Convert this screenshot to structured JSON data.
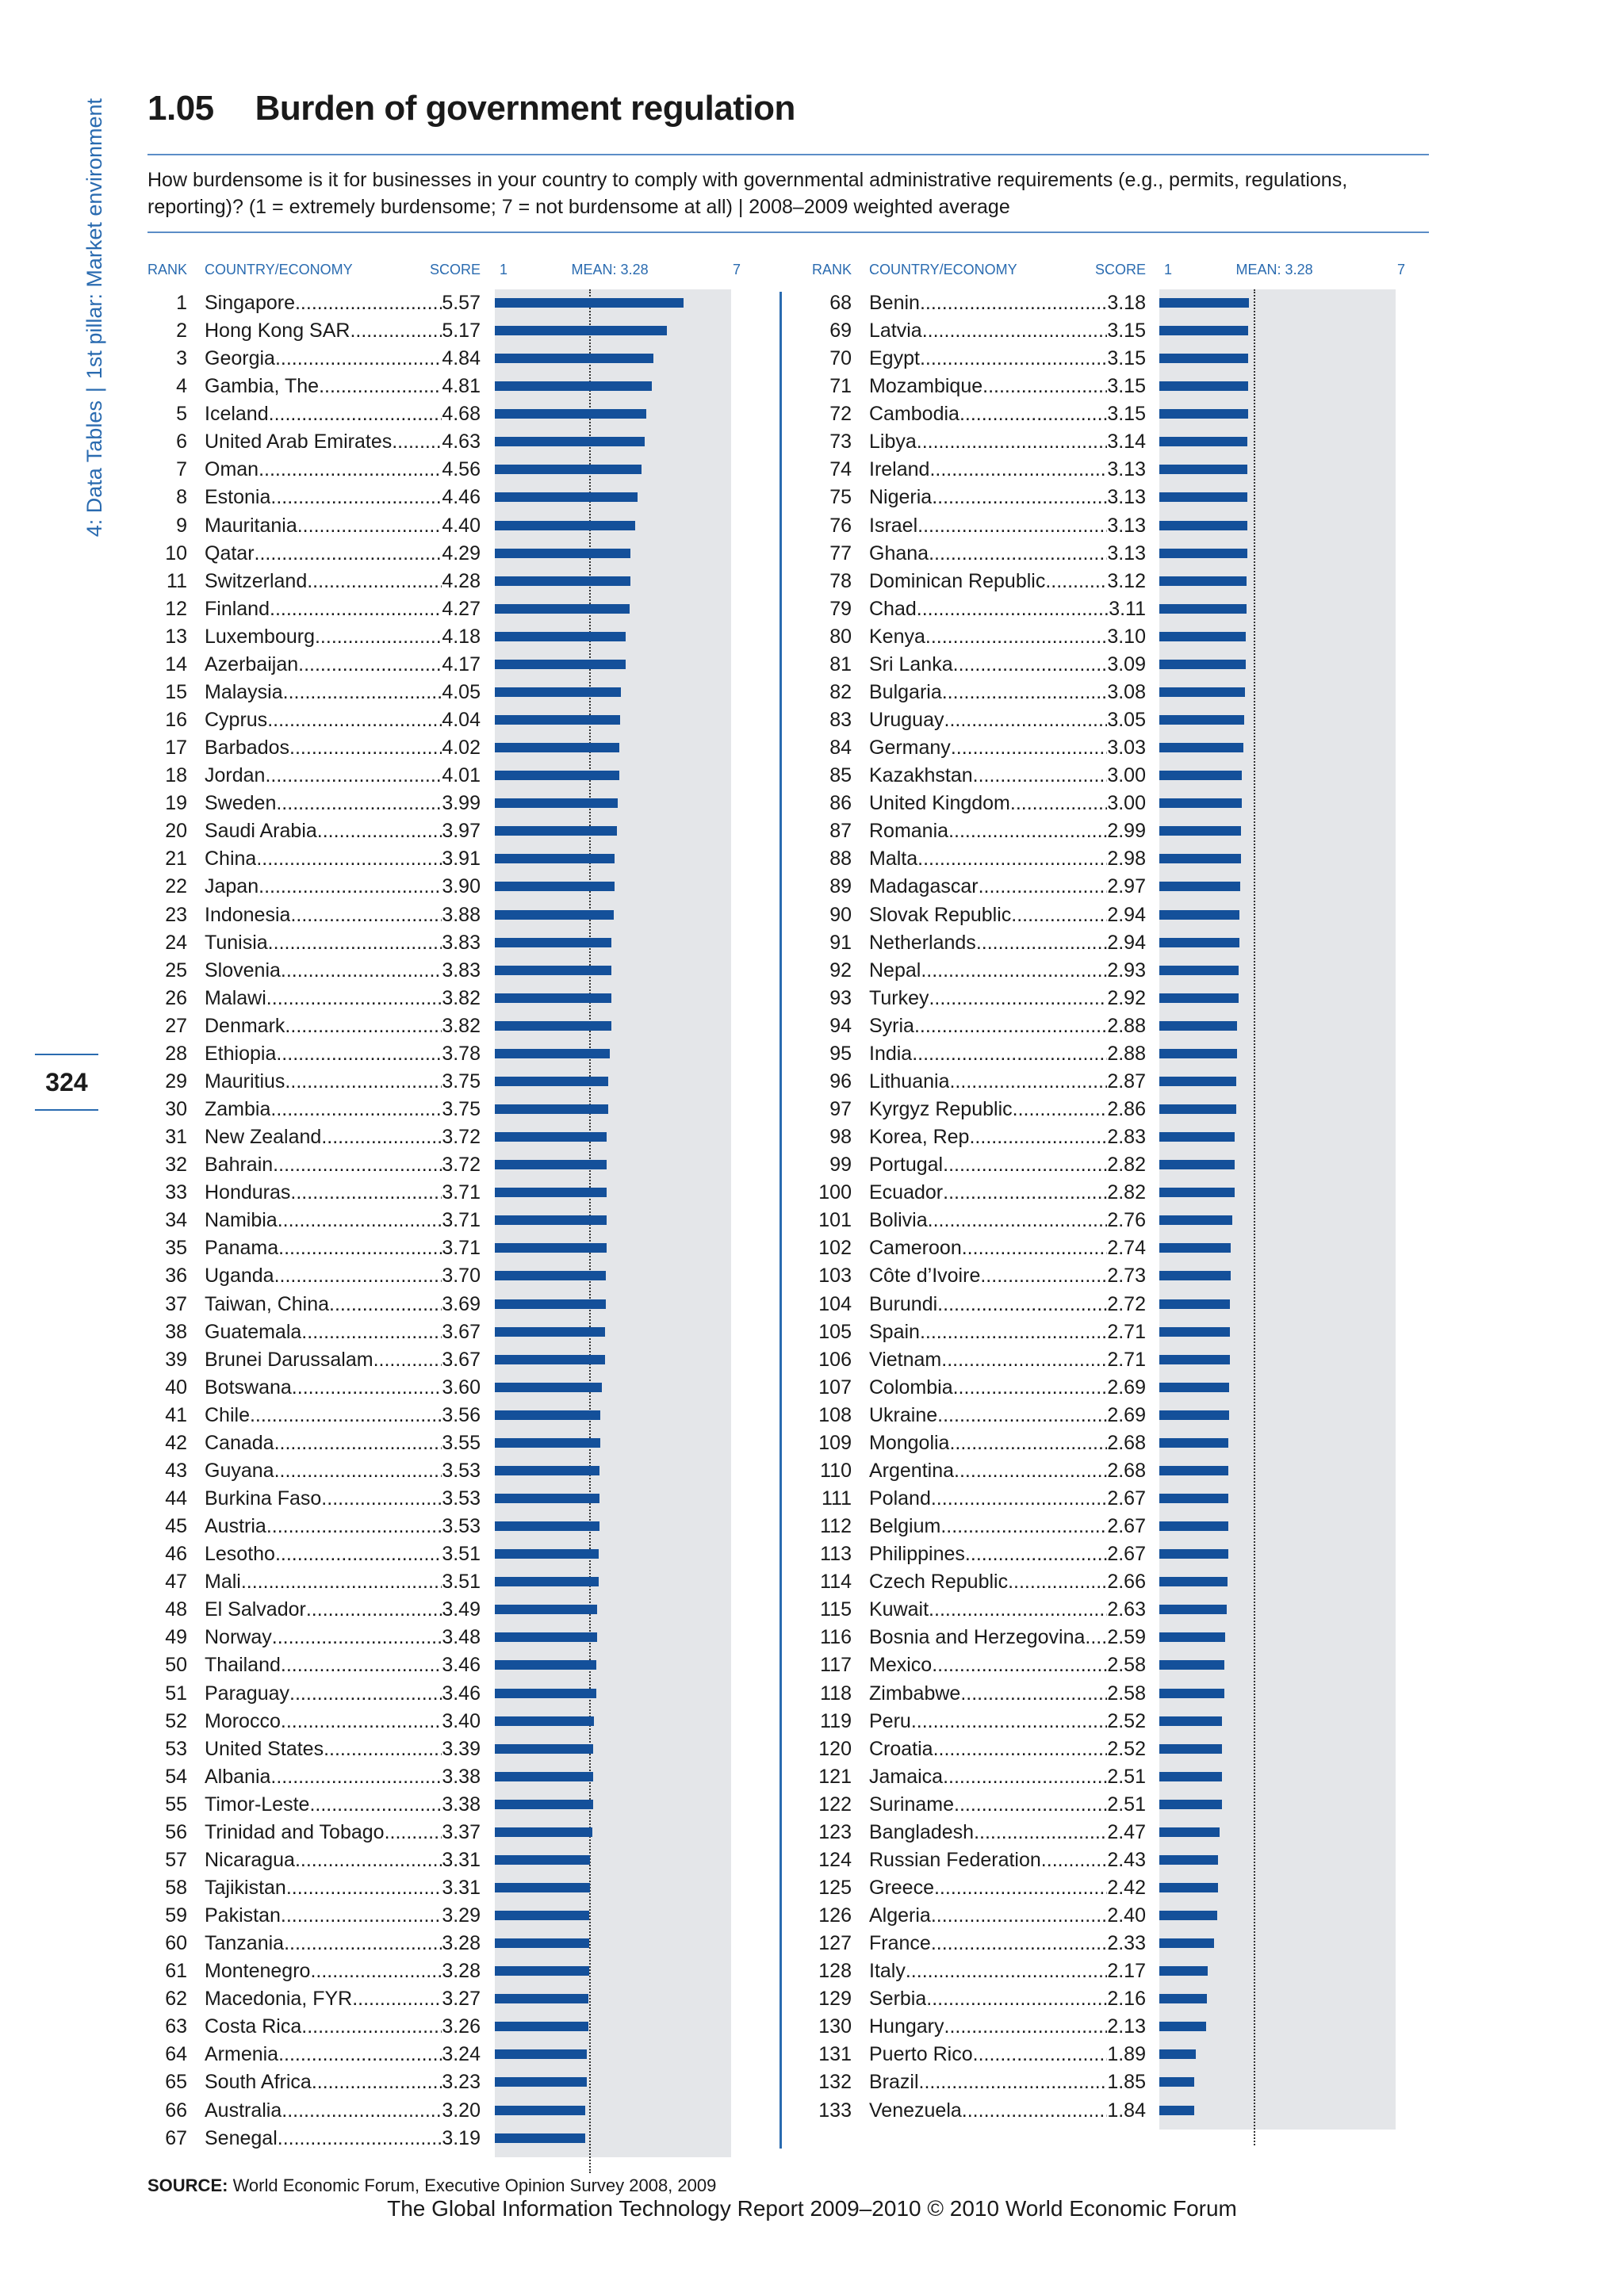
{
  "side_tab": {
    "part1": "4: Data Tables",
    "sep": "|",
    "part2": "1st pillar: Market environment"
  },
  "page_number": "324",
  "title": {
    "number": "1.05",
    "text": "Burden of government regulation"
  },
  "description": "How burdensome is it for businesses in your country to comply with governmental administrative requirements (e.g., permits, regulations, reporting)?  (1 = extremely burdensome; 7 = not burdensome at all)  |  2008–2009 weighted average",
  "headers": {
    "rank": "RANK",
    "country": "COUNTRY/ECONOMY",
    "score": "SCORE",
    "scale_min": "1",
    "mean": "MEAN: 3.28",
    "scale_max": "7"
  },
  "source": {
    "label": "SOURCE:",
    "text": " World Economic Forum, Executive Opinion Survey 2008, 2009"
  },
  "footer": "The Global Information Technology Report 2009–2010 © 2010 World Economic Forum",
  "chart_data": {
    "type": "bar",
    "orientation": "horizontal",
    "xlim": [
      1,
      7
    ],
    "mean": 3.28,
    "color": "#14509a",
    "rows": [
      {
        "rank": "1",
        "country": "Singapore",
        "score": "5.57"
      },
      {
        "rank": "2",
        "country": "Hong Kong SAR",
        "score": "5.17"
      },
      {
        "rank": "3",
        "country": "Georgia",
        "score": "4.84"
      },
      {
        "rank": "4",
        "country": "Gambia, The",
        "score": "4.81"
      },
      {
        "rank": "5",
        "country": "Iceland",
        "score": "4.68"
      },
      {
        "rank": "6",
        "country": "United Arab Emirates",
        "score": "4.63"
      },
      {
        "rank": "7",
        "country": "Oman",
        "score": "4.56"
      },
      {
        "rank": "8",
        "country": "Estonia",
        "score": "4.46"
      },
      {
        "rank": "9",
        "country": "Mauritania",
        "score": "4.40"
      },
      {
        "rank": "10",
        "country": "Qatar",
        "score": "4.29"
      },
      {
        "rank": "11",
        "country": "Switzerland",
        "score": "4.28"
      },
      {
        "rank": "12",
        "country": "Finland",
        "score": "4.27"
      },
      {
        "rank": "13",
        "country": "Luxembourg",
        "score": "4.18"
      },
      {
        "rank": "14",
        "country": "Azerbaijan",
        "score": "4.17"
      },
      {
        "rank": "15",
        "country": "Malaysia",
        "score": "4.05"
      },
      {
        "rank": "16",
        "country": "Cyprus",
        "score": "4.04"
      },
      {
        "rank": "17",
        "country": "Barbados",
        "score": "4.02"
      },
      {
        "rank": "18",
        "country": "Jordan",
        "score": "4.01"
      },
      {
        "rank": "19",
        "country": "Sweden",
        "score": "3.99"
      },
      {
        "rank": "20",
        "country": "Saudi Arabia",
        "score": "3.97"
      },
      {
        "rank": "21",
        "country": "China",
        "score": "3.91"
      },
      {
        "rank": "22",
        "country": "Japan",
        "score": "3.90"
      },
      {
        "rank": "23",
        "country": "Indonesia",
        "score": "3.88"
      },
      {
        "rank": "24",
        "country": "Tunisia",
        "score": "3.83"
      },
      {
        "rank": "25",
        "country": "Slovenia",
        "score": "3.83"
      },
      {
        "rank": "26",
        "country": "Malawi",
        "score": "3.82"
      },
      {
        "rank": "27",
        "country": "Denmark",
        "score": "3.82"
      },
      {
        "rank": "28",
        "country": "Ethiopia",
        "score": "3.78"
      },
      {
        "rank": "29",
        "country": "Mauritius",
        "score": "3.75"
      },
      {
        "rank": "30",
        "country": "Zambia",
        "score": "3.75"
      },
      {
        "rank": "31",
        "country": "New Zealand",
        "score": "3.72"
      },
      {
        "rank": "32",
        "country": "Bahrain",
        "score": "3.72"
      },
      {
        "rank": "33",
        "country": "Honduras",
        "score": "3.71"
      },
      {
        "rank": "34",
        "country": "Namibia",
        "score": "3.71"
      },
      {
        "rank": "35",
        "country": "Panama",
        "score": "3.71"
      },
      {
        "rank": "36",
        "country": "Uganda",
        "score": "3.70"
      },
      {
        "rank": "37",
        "country": "Taiwan, China",
        "score": "3.69"
      },
      {
        "rank": "38",
        "country": "Guatemala",
        "score": "3.67"
      },
      {
        "rank": "39",
        "country": "Brunei Darussalam",
        "score": "3.67"
      },
      {
        "rank": "40",
        "country": "Botswana",
        "score": "3.60"
      },
      {
        "rank": "41",
        "country": "Chile",
        "score": "3.56"
      },
      {
        "rank": "42",
        "country": "Canada",
        "score": "3.55"
      },
      {
        "rank": "43",
        "country": "Guyana",
        "score": "3.53"
      },
      {
        "rank": "44",
        "country": "Burkina Faso",
        "score": "3.53"
      },
      {
        "rank": "45",
        "country": "Austria",
        "score": "3.53"
      },
      {
        "rank": "46",
        "country": "Lesotho",
        "score": "3.51"
      },
      {
        "rank": "47",
        "country": "Mali",
        "score": "3.51"
      },
      {
        "rank": "48",
        "country": "El Salvador",
        "score": "3.49"
      },
      {
        "rank": "49",
        "country": "Norway",
        "score": "3.48"
      },
      {
        "rank": "50",
        "country": "Thailand",
        "score": "3.46"
      },
      {
        "rank": "51",
        "country": "Paraguay",
        "score": "3.46"
      },
      {
        "rank": "52",
        "country": "Morocco",
        "score": "3.40"
      },
      {
        "rank": "53",
        "country": "United States",
        "score": "3.39"
      },
      {
        "rank": "54",
        "country": "Albania",
        "score": "3.38"
      },
      {
        "rank": "55",
        "country": "Timor-Leste",
        "score": "3.38"
      },
      {
        "rank": "56",
        "country": "Trinidad and Tobago",
        "score": "3.37"
      },
      {
        "rank": "57",
        "country": "Nicaragua",
        "score": "3.31"
      },
      {
        "rank": "58",
        "country": "Tajikistan",
        "score": "3.31"
      },
      {
        "rank": "59",
        "country": "Pakistan",
        "score": "3.29"
      },
      {
        "rank": "60",
        "country": "Tanzania",
        "score": "3.28"
      },
      {
        "rank": "61",
        "country": "Montenegro",
        "score": "3.28"
      },
      {
        "rank": "62",
        "country": "Macedonia, FYR",
        "score": "3.27"
      },
      {
        "rank": "63",
        "country": "Costa Rica",
        "score": "3.26"
      },
      {
        "rank": "64",
        "country": "Armenia",
        "score": "3.24"
      },
      {
        "rank": "65",
        "country": "South Africa",
        "score": "3.23"
      },
      {
        "rank": "66",
        "country": "Australia",
        "score": "3.20"
      },
      {
        "rank": "67",
        "country": "Senegal",
        "score": "3.19"
      },
      {
        "rank": "68",
        "country": "Benin",
        "score": "3.18"
      },
      {
        "rank": "69",
        "country": "Latvia",
        "score": "3.15"
      },
      {
        "rank": "70",
        "country": "Egypt",
        "score": "3.15"
      },
      {
        "rank": "71",
        "country": "Mozambique",
        "score": "3.15"
      },
      {
        "rank": "72",
        "country": "Cambodia",
        "score": "3.15"
      },
      {
        "rank": "73",
        "country": "Libya",
        "score": "3.14"
      },
      {
        "rank": "74",
        "country": "Ireland",
        "score": "3.13"
      },
      {
        "rank": "75",
        "country": "Nigeria",
        "score": "3.13"
      },
      {
        "rank": "76",
        "country": "Israel",
        "score": "3.13"
      },
      {
        "rank": "77",
        "country": "Ghana",
        "score": "3.13"
      },
      {
        "rank": "78",
        "country": "Dominican Republic",
        "score": "3.12"
      },
      {
        "rank": "79",
        "country": "Chad",
        "score": "3.11"
      },
      {
        "rank": "80",
        "country": "Kenya",
        "score": "3.10"
      },
      {
        "rank": "81",
        "country": "Sri Lanka",
        "score": "3.09"
      },
      {
        "rank": "82",
        "country": "Bulgaria",
        "score": "3.08"
      },
      {
        "rank": "83",
        "country": "Uruguay",
        "score": "3.05"
      },
      {
        "rank": "84",
        "country": "Germany",
        "score": "3.03"
      },
      {
        "rank": "85",
        "country": "Kazakhstan",
        "score": "3.00"
      },
      {
        "rank": "86",
        "country": "United Kingdom",
        "score": "3.00"
      },
      {
        "rank": "87",
        "country": "Romania",
        "score": "2.99"
      },
      {
        "rank": "88",
        "country": "Malta",
        "score": "2.98"
      },
      {
        "rank": "89",
        "country": "Madagascar",
        "score": "2.97"
      },
      {
        "rank": "90",
        "country": "Slovak Republic",
        "score": "2.94"
      },
      {
        "rank": "91",
        "country": "Netherlands",
        "score": "2.94"
      },
      {
        "rank": "92",
        "country": "Nepal",
        "score": "2.93"
      },
      {
        "rank": "93",
        "country": "Turkey",
        "score": "2.92"
      },
      {
        "rank": "94",
        "country": "Syria",
        "score": "2.88"
      },
      {
        "rank": "95",
        "country": "India",
        "score": "2.88"
      },
      {
        "rank": "96",
        "country": "Lithuania",
        "score": "2.87"
      },
      {
        "rank": "97",
        "country": "Kyrgyz Republic",
        "score": "2.86"
      },
      {
        "rank": "98",
        "country": "Korea, Rep.",
        "score": "2.83"
      },
      {
        "rank": "99",
        "country": "Portugal",
        "score": "2.82"
      },
      {
        "rank": "100",
        "country": "Ecuador",
        "score": "2.82"
      },
      {
        "rank": "101",
        "country": "Bolivia",
        "score": "2.76"
      },
      {
        "rank": "102",
        "country": "Cameroon",
        "score": "2.74"
      },
      {
        "rank": "103",
        "country": "Côte d’Ivoire",
        "score": "2.73"
      },
      {
        "rank": "104",
        "country": "Burundi",
        "score": "2.72"
      },
      {
        "rank": "105",
        "country": "Spain",
        "score": "2.71"
      },
      {
        "rank": "106",
        "country": "Vietnam",
        "score": "2.71"
      },
      {
        "rank": "107",
        "country": "Colombia",
        "score": "2.69"
      },
      {
        "rank": "108",
        "country": "Ukraine",
        "score": "2.69"
      },
      {
        "rank": "109",
        "country": "Mongolia",
        "score": "2.68"
      },
      {
        "rank": "110",
        "country": "Argentina",
        "score": "2.68"
      },
      {
        "rank": "111",
        "country": "Poland",
        "score": "2.67"
      },
      {
        "rank": "112",
        "country": "Belgium",
        "score": "2.67"
      },
      {
        "rank": "113",
        "country": "Philippines",
        "score": "2.67"
      },
      {
        "rank": "114",
        "country": "Czech Republic",
        "score": "2.66"
      },
      {
        "rank": "115",
        "country": "Kuwait",
        "score": "2.63"
      },
      {
        "rank": "116",
        "country": "Bosnia and Herzegovina",
        "score": "2.59"
      },
      {
        "rank": "117",
        "country": "Mexico",
        "score": "2.58"
      },
      {
        "rank": "118",
        "country": "Zimbabwe",
        "score": "2.58"
      },
      {
        "rank": "119",
        "country": "Peru",
        "score": "2.52"
      },
      {
        "rank": "120",
        "country": "Croatia",
        "score": "2.52"
      },
      {
        "rank": "121",
        "country": "Jamaica",
        "score": "2.51"
      },
      {
        "rank": "122",
        "country": "Suriname",
        "score": "2.51"
      },
      {
        "rank": "123",
        "country": "Bangladesh",
        "score": "2.47"
      },
      {
        "rank": "124",
        "country": "Russian Federation",
        "score": "2.43"
      },
      {
        "rank": "125",
        "country": "Greece",
        "score": "2.42"
      },
      {
        "rank": "126",
        "country": "Algeria",
        "score": "2.40"
      },
      {
        "rank": "127",
        "country": "France",
        "score": "2.33"
      },
      {
        "rank": "128",
        "country": "Italy",
        "score": "2.17"
      },
      {
        "rank": "129",
        "country": "Serbia",
        "score": "2.16"
      },
      {
        "rank": "130",
        "country": "Hungary",
        "score": "2.13"
      },
      {
        "rank": "131",
        "country": "Puerto Rico",
        "score": "1.89"
      },
      {
        "rank": "132",
        "country": "Brazil",
        "score": "1.85"
      },
      {
        "rank": "133",
        "country": "Venezuela",
        "score": "1.84"
      }
    ]
  }
}
